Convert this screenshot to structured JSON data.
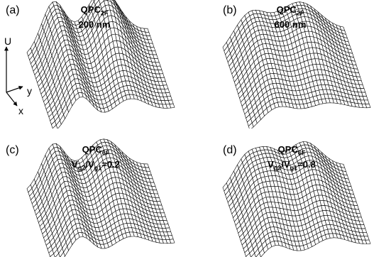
{
  "panels": [
    {
      "label": "(a)",
      "title_main": "QPC",
      "title_sub": "2F",
      "line2": "200 nm"
    },
    {
      "label": "(b)",
      "title_main": "QPC",
      "title_sub": "2F",
      "line2": "600 nm"
    },
    {
      "label": "(c)",
      "title_main": "QPC",
      "title_sub": "6F",
      "ratio_v1": "V",
      "ratio_s1": "g2",
      "ratio_mid": "/V",
      "ratio_s2": "g1",
      "ratio_val": "=0.2"
    },
    {
      "label": "(d)",
      "title_main": "QPC",
      "title_sub": "6F",
      "ratio_v1": "V",
      "ratio_s1": "g2",
      "ratio_mid": "/V",
      "ratio_s2": "g1",
      "ratio_val": "=0.8"
    }
  ],
  "axes": {
    "u_label": "U",
    "y_label": "y",
    "x_label": "x"
  }
}
